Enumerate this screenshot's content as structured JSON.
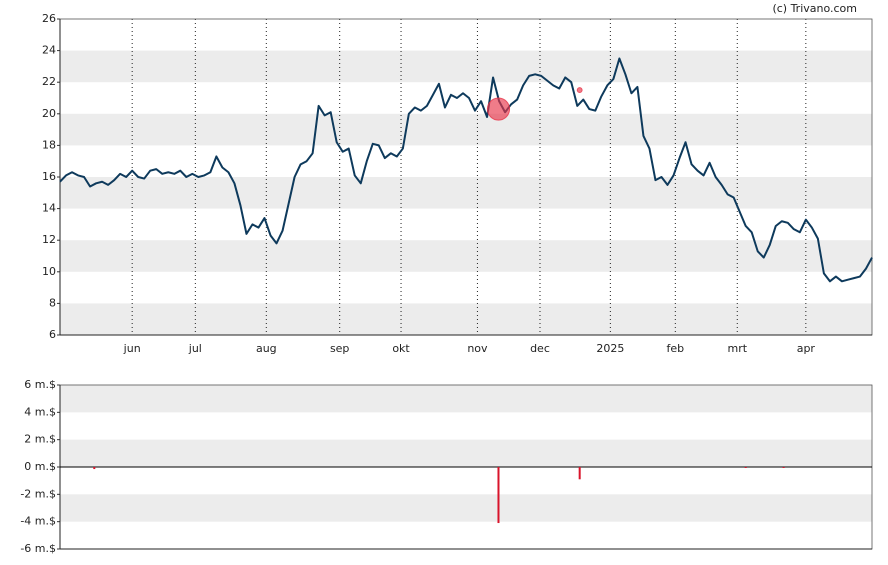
{
  "chart_data": [
    {
      "type": "line",
      "credit": "(c) Trivano.com",
      "series": [
        {
          "color": "#0e3a5c",
          "values": [
            15.7,
            16.1,
            16.3,
            16.1,
            16.0,
            15.4,
            15.6,
            15.7,
            15.5,
            15.8,
            16.2,
            16.0,
            16.4,
            16.0,
            15.9,
            16.4,
            16.5,
            16.2,
            16.3,
            16.2,
            16.4,
            16.0,
            16.2,
            16.0,
            16.1,
            16.3,
            17.3,
            16.6,
            16.3,
            15.6,
            14.2,
            12.4,
            13.0,
            12.8,
            13.4,
            12.3,
            11.8,
            12.6,
            14.3,
            16.0,
            16.8,
            17.0,
            17.5,
            20.5,
            19.9,
            20.1,
            18.2,
            17.6,
            17.8,
            16.1,
            15.6,
            17.0,
            18.1,
            18.0,
            17.2,
            17.5,
            17.3,
            17.8,
            20.0,
            20.4,
            20.2,
            20.5,
            21.2,
            21.9,
            20.4,
            21.2,
            21.0,
            21.3,
            21.0,
            20.2,
            20.8,
            19.8,
            22.3,
            20.8,
            20.1,
            20.6,
            20.9,
            21.8,
            22.4,
            22.5,
            22.4,
            22.1,
            21.8,
            21.6,
            22.3,
            22.0,
            20.5,
            20.9,
            20.3,
            20.2,
            21.1,
            21.8,
            22.2,
            23.5,
            22.5,
            21.3,
            21.7,
            18.6,
            17.8,
            15.8,
            16.0,
            15.5,
            16.1,
            17.2,
            18.2,
            16.8,
            16.4,
            16.1,
            16.9,
            16.0,
            15.5,
            14.9,
            14.7,
            13.8,
            12.9,
            12.5,
            11.3,
            10.9,
            11.7,
            12.9,
            13.2,
            13.1,
            12.7,
            12.5,
            13.3,
            12.8,
            12.1,
            9.9,
            9.4,
            9.7,
            9.4,
            9.5,
            9.6,
            9.7,
            10.2,
            10.9
          ]
        }
      ],
      "markers": {
        "color": "#e8364a",
        "x": [
          72.9,
          86.4
        ],
        "values": [
          20.3,
          21.5
        ]
      },
      "xlim": [
        0,
        135
      ],
      "xticks": [
        {
          "value": 12,
          "label": "jun"
        },
        {
          "value": 22.5,
          "label": "jul"
        },
        {
          "value": 34.3,
          "label": "aug"
        },
        {
          "value": 46.5,
          "label": "sep"
        },
        {
          "value": 56.7,
          "label": "okt"
        },
        {
          "value": 69.4,
          "label": "nov"
        },
        {
          "value": 79.8,
          "label": "dec"
        },
        {
          "value": 91.5,
          "label": "2025"
        },
        {
          "value": 102.3,
          "label": "feb"
        },
        {
          "value": 112.6,
          "label": "mrt"
        },
        {
          "value": 124,
          "label": "apr"
        }
      ],
      "ylim": [
        6,
        26
      ],
      "yticks": [
        6,
        8,
        10,
        12,
        14,
        16,
        18,
        20,
        22,
        24,
        26
      ],
      "grid": true
    },
    {
      "type": "bar",
      "color": "#d9142b",
      "x": [
        5.7,
        72.9,
        86.4,
        114,
        120.3
      ],
      "values": [
        -0.15,
        -4.1,
        -0.9,
        -0.05,
        -0.05
      ],
      "xlim": [
        0,
        135
      ],
      "ylim": [
        -6,
        6
      ],
      "yticks": [
        {
          "value": 6,
          "label": "6 m.$"
        },
        {
          "value": 4,
          "label": "4 m.$"
        },
        {
          "value": 2,
          "label": "2 m.$"
        },
        {
          "value": 0,
          "label": "0 m.$"
        },
        {
          "value": -2,
          "label": "-2 m.$"
        },
        {
          "value": -4,
          "label": "-4 m.$"
        },
        {
          "value": -6,
          "label": "-6 m.$"
        }
      ],
      "grid": true
    }
  ]
}
